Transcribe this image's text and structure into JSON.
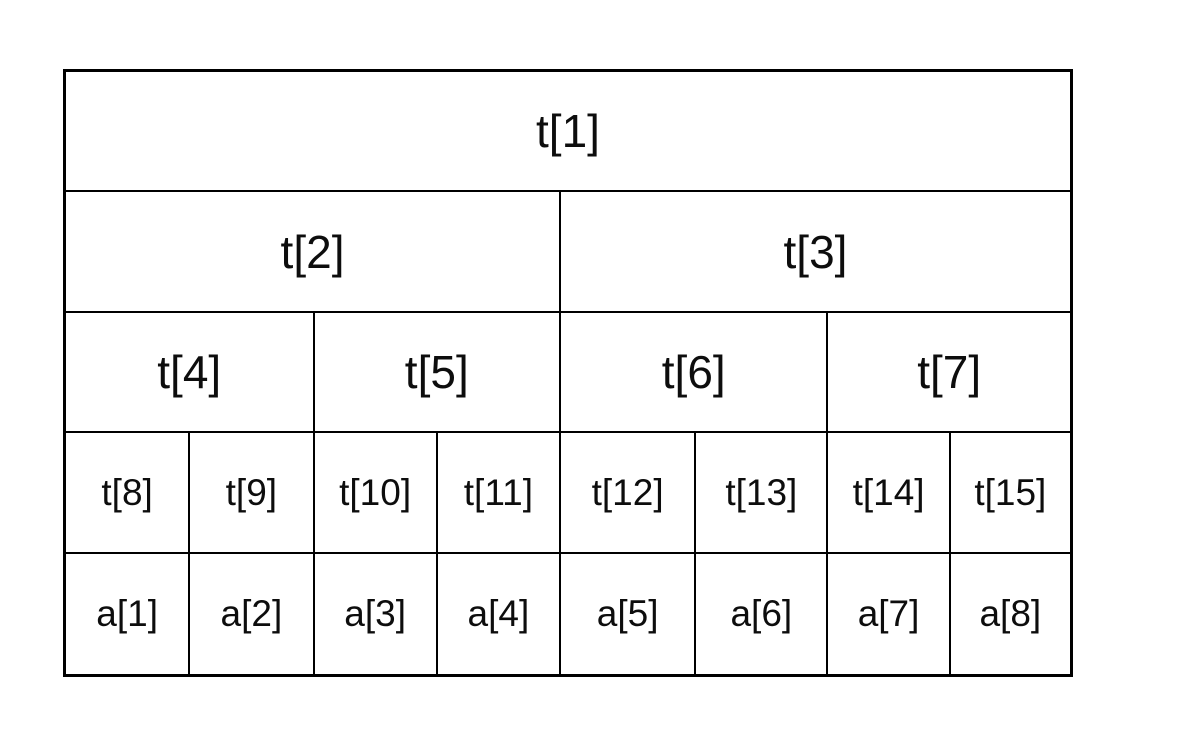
{
  "diagram": {
    "kind": "segment-tree-array-layout-table",
    "colors": {
      "border": "#000000",
      "text": "#0d0d0d",
      "background": "#ffffff"
    },
    "rows": [
      {
        "cells": [
          {
            "label": "t[1]"
          }
        ]
      },
      {
        "cells": [
          {
            "label": "t[2]"
          },
          {
            "label": "t[3]"
          }
        ]
      },
      {
        "cells": [
          {
            "label": "t[4]"
          },
          {
            "label": "t[5]"
          },
          {
            "label": "t[6]"
          },
          {
            "label": "t[7]"
          }
        ]
      },
      {
        "cells": [
          {
            "label": "t[8]"
          },
          {
            "label": "t[9]"
          },
          {
            "label": "t[10]"
          },
          {
            "label": "t[11]"
          },
          {
            "label": "t[12]"
          },
          {
            "label": "t[13]"
          },
          {
            "label": "t[14]"
          },
          {
            "label": "t[15]"
          }
        ]
      },
      {
        "cells": [
          {
            "label": "a[1]"
          },
          {
            "label": "a[2]"
          },
          {
            "label": "a[3]"
          },
          {
            "label": "a[4]"
          },
          {
            "label": "a[5]"
          },
          {
            "label": "a[6]"
          },
          {
            "label": "a[7]"
          },
          {
            "label": "a[8]"
          }
        ]
      }
    ]
  }
}
